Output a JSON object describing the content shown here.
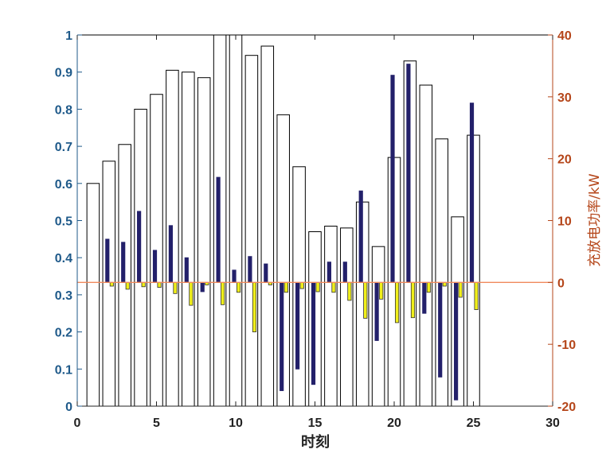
{
  "chart_data": {
    "type": "bar",
    "xlabel": "时刻",
    "ylabel_left": "",
    "ylabel_right": "充放电功率/kW",
    "xlim": [
      0,
      30
    ],
    "ylim_left": [
      0,
      1
    ],
    "ylim_right": [
      -20,
      40
    ],
    "x_ticks": [
      0,
      5,
      10,
      15,
      20,
      25,
      30
    ],
    "y_left_ticks": [
      0,
      0.1,
      0.2,
      0.3,
      0.4,
      0.5,
      0.6,
      0.7,
      0.8,
      0.9,
      1
    ],
    "y_right_ticks": [
      -20,
      -10,
      0,
      10,
      20,
      30,
      40
    ],
    "grid": false,
    "legend": "none",
    "x": [
      1,
      2,
      3,
      4,
      5,
      6,
      7,
      8,
      9,
      10,
      11,
      12,
      13,
      14,
      15,
      16,
      17,
      18,
      19,
      20,
      21,
      22,
      23,
      24,
      25
    ],
    "series": [
      {
        "axis": "left",
        "color": "#ffffff",
        "edge": "#000000",
        "values": [
          0.6,
          0.66,
          0.705,
          0.8,
          0.84,
          0.905,
          0.9,
          0.885,
          1.0,
          1.0,
          0.945,
          0.97,
          0.785,
          0.645,
          0.47,
          0.485,
          0.48,
          0.55,
          0.43,
          0.67,
          0.93,
          0.865,
          0.72,
          0.51,
          0.73
        ]
      },
      {
        "axis": "right",
        "color": "#23206a",
        "values": [
          0.0,
          7.0,
          6.5,
          11.5,
          5.2,
          9.2,
          4.0,
          -1.5,
          17.0,
          2.0,
          4.2,
          3.0,
          -17.5,
          -14.0,
          -16.5,
          3.3,
          3.3,
          14.8,
          -9.4,
          33.5,
          35.3,
          -5.0,
          -15.3,
          -19.0,
          29.0
        ]
      },
      {
        "axis": "right",
        "color": "#f0ef1a",
        "edge": "#333333",
        "values": [
          0.0,
          -0.6,
          -1.1,
          -0.7,
          -0.8,
          -1.8,
          -3.7,
          -0.4,
          -3.6,
          -1.6,
          -8.0,
          -0.4,
          -1.6,
          -1.0,
          -1.5,
          -1.6,
          -2.9,
          -5.8,
          -2.7,
          -6.5,
          -5.7,
          -1.6,
          -0.6,
          -2.4,
          -4.4
        ]
      }
    ],
    "colors": {
      "left_axis": "#1f5a8a",
      "right_axis": "#b5461a",
      "zero_line": "#f08a5d"
    }
  }
}
